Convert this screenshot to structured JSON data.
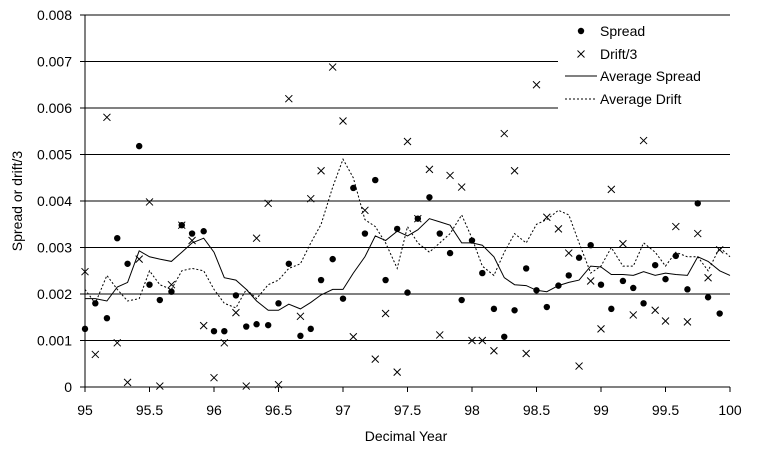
{
  "chart_data": {
    "type": "scatter",
    "xlabel": "Decimal Year",
    "ylabel": "Spread or drift/3",
    "xlim": [
      95,
      100
    ],
    "ylim": [
      0,
      0.008
    ],
    "x_ticks": [
      95,
      95.5,
      96,
      96.5,
      97,
      97.5,
      98,
      98.5,
      99,
      99.5,
      100
    ],
    "x_tick_labels": [
      "95",
      "95.5",
      "96",
      "96.5",
      "97",
      "97.5",
      "98",
      "98.5",
      "99",
      "99.5",
      "100"
    ],
    "y_ticks": [
      0,
      0.001,
      0.002,
      0.003,
      0.004,
      0.005,
      0.006,
      0.007,
      0.008
    ],
    "y_tick_labels": [
      "0",
      "0.001",
      "0.002",
      "0.003",
      "0.004",
      "0.005",
      "0.006",
      "0.007",
      "0.008"
    ],
    "grid": "horizontal",
    "legend_position": "top-right",
    "series": [
      {
        "name": "Spread",
        "marker": "dot",
        "points": [
          [
            95.0,
            0.00125
          ],
          [
            95.08,
            0.0018
          ],
          [
            95.17,
            0.00148
          ],
          [
            95.25,
            0.0032
          ],
          [
            95.33,
            0.00265
          ],
          [
            95.42,
            0.00518
          ],
          [
            95.5,
            0.0022
          ],
          [
            95.58,
            0.00187
          ],
          [
            95.67,
            0.00205
          ],
          [
            95.75,
            0.00348
          ],
          [
            95.83,
            0.0033
          ],
          [
            95.92,
            0.00335
          ],
          [
            96.0,
            0.0012
          ],
          [
            96.08,
            0.0012
          ],
          [
            96.17,
            0.00197
          ],
          [
            96.25,
            0.0013
          ],
          [
            96.33,
            0.00135
          ],
          [
            96.42,
            0.00133
          ],
          [
            96.5,
            0.0018
          ],
          [
            96.58,
            0.00265
          ],
          [
            96.67,
            0.0011
          ],
          [
            96.75,
            0.00125
          ],
          [
            96.83,
            0.0023
          ],
          [
            96.92,
            0.00275
          ],
          [
            97.0,
            0.0019
          ],
          [
            97.08,
            0.00428
          ],
          [
            97.17,
            0.0033
          ],
          [
            97.25,
            0.00445
          ],
          [
            97.33,
            0.0023
          ],
          [
            97.42,
            0.0034
          ],
          [
            97.5,
            0.00203
          ],
          [
            97.58,
            0.00362
          ],
          [
            97.67,
            0.00408
          ],
          [
            97.75,
            0.0033
          ],
          [
            97.83,
            0.00288
          ],
          [
            97.92,
            0.00187
          ],
          [
            98.0,
            0.00315
          ],
          [
            98.08,
            0.00245
          ],
          [
            98.17,
            0.00168
          ],
          [
            98.25,
            0.00108
          ],
          [
            98.33,
            0.00165
          ],
          [
            98.42,
            0.00255
          ],
          [
            98.5,
            0.00208
          ],
          [
            98.58,
            0.00172
          ],
          [
            98.67,
            0.00218
          ],
          [
            98.75,
            0.0024
          ],
          [
            98.83,
            0.00278
          ],
          [
            98.92,
            0.00305
          ],
          [
            99.0,
            0.0022
          ],
          [
            99.08,
            0.00168
          ],
          [
            99.17,
            0.00228
          ],
          [
            99.25,
            0.00213
          ],
          [
            99.33,
            0.0018
          ],
          [
            99.42,
            0.00262
          ],
          [
            99.5,
            0.00232
          ],
          [
            99.58,
            0.00282
          ],
          [
            99.67,
            0.0021
          ],
          [
            99.75,
            0.00395
          ],
          [
            99.83,
            0.00193
          ],
          [
            99.92,
            0.00158
          ]
        ]
      },
      {
        "name": "Drift/3",
        "marker": "x",
        "points": [
          [
            95.0,
            0.00248
          ],
          [
            95.08,
            0.0007
          ],
          [
            95.17,
            0.0058
          ],
          [
            95.25,
            0.00095
          ],
          [
            95.33,
            0.0001
          ],
          [
            95.42,
            0.00275
          ],
          [
            95.5,
            0.00398
          ],
          [
            95.58,
            2e-05
          ],
          [
            95.67,
            0.0022
          ],
          [
            95.75,
            0.00348
          ],
          [
            95.83,
            0.00315
          ],
          [
            95.92,
            0.00132
          ],
          [
            96.0,
            0.0002
          ],
          [
            96.08,
            0.00095
          ],
          [
            96.17,
            0.0016
          ],
          [
            96.25,
            2e-05
          ],
          [
            96.33,
            0.0032
          ],
          [
            96.42,
            0.00395
          ],
          [
            96.5,
            5e-05
          ],
          [
            96.58,
            0.0062
          ],
          [
            96.67,
            0.00152
          ],
          [
            96.75,
            0.00405
          ],
          [
            96.83,
            0.00465
          ],
          [
            96.92,
            0.00688
          ],
          [
            97.0,
            0.00572
          ],
          [
            97.08,
            0.00108
          ],
          [
            97.17,
            0.0038
          ],
          [
            97.25,
            0.0006
          ],
          [
            97.33,
            0.00158
          ],
          [
            97.42,
            0.00032
          ],
          [
            97.5,
            0.00528
          ],
          [
            97.58,
            0.00362
          ],
          [
            97.67,
            0.00468
          ],
          [
            97.75,
            0.00112
          ],
          [
            97.83,
            0.00455
          ],
          [
            97.92,
            0.0043
          ],
          [
            98.0,
            0.001
          ],
          [
            98.08,
            0.001
          ],
          [
            98.17,
            0.00078
          ],
          [
            98.25,
            0.00545
          ],
          [
            98.33,
            0.00465
          ],
          [
            98.42,
            0.00072
          ],
          [
            98.5,
            0.0065
          ],
          [
            98.58,
            0.00365
          ],
          [
            98.67,
            0.0034
          ],
          [
            98.75,
            0.00288
          ],
          [
            98.83,
            0.00045
          ],
          [
            98.92,
            0.00228
          ],
          [
            99.0,
            0.00125
          ],
          [
            99.08,
            0.00425
          ],
          [
            99.17,
            0.00308
          ],
          [
            99.25,
            0.00155
          ],
          [
            99.33,
            0.0053
          ],
          [
            99.42,
            0.00165
          ],
          [
            99.5,
            0.00142
          ],
          [
            99.58,
            0.00345
          ],
          [
            99.67,
            0.0014
          ],
          [
            99.75,
            0.0033
          ],
          [
            99.83,
            0.00235
          ],
          [
            99.92,
            0.00295
          ]
        ]
      },
      {
        "name": "Average Spread",
        "line_style": "solid",
        "points": [
          [
            95.0,
            0.0019
          ],
          [
            95.08,
            0.0019
          ],
          [
            95.17,
            0.00185
          ],
          [
            95.25,
            0.00215
          ],
          [
            95.33,
            0.00225
          ],
          [
            95.42,
            0.00293
          ],
          [
            95.5,
            0.0028
          ],
          [
            95.58,
            0.00275
          ],
          [
            95.67,
            0.0027
          ],
          [
            95.75,
            0.0029
          ],
          [
            95.83,
            0.0031
          ],
          [
            95.92,
            0.0032
          ],
          [
            96.0,
            0.0029
          ],
          [
            96.08,
            0.00235
          ],
          [
            96.17,
            0.0023
          ],
          [
            96.25,
            0.0021
          ],
          [
            96.33,
            0.00185
          ],
          [
            96.42,
            0.00165
          ],
          [
            96.5,
            0.00165
          ],
          [
            96.58,
            0.00178
          ],
          [
            96.67,
            0.00168
          ],
          [
            96.75,
            0.00182
          ],
          [
            96.83,
            0.00198
          ],
          [
            96.92,
            0.0021
          ],
          [
            97.0,
            0.0021
          ],
          [
            97.08,
            0.00245
          ],
          [
            97.17,
            0.0028
          ],
          [
            97.25,
            0.00325
          ],
          [
            97.33,
            0.00315
          ],
          [
            97.42,
            0.00335
          ],
          [
            97.5,
            0.00325
          ],
          [
            97.58,
            0.00338
          ],
          [
            97.67,
            0.00362
          ],
          [
            97.75,
            0.00355
          ],
          [
            97.83,
            0.00348
          ],
          [
            97.92,
            0.0031
          ],
          [
            98.0,
            0.0031
          ],
          [
            98.08,
            0.00305
          ],
          [
            98.17,
            0.0028
          ],
          [
            98.25,
            0.00235
          ],
          [
            98.33,
            0.0022
          ],
          [
            98.42,
            0.00218
          ],
          [
            98.5,
            0.00208
          ],
          [
            98.58,
            0.00205
          ],
          [
            98.67,
            0.00218
          ],
          [
            98.75,
            0.00225
          ],
          [
            98.83,
            0.0023
          ],
          [
            98.92,
            0.0026
          ],
          [
            99.0,
            0.00258
          ],
          [
            99.08,
            0.00242
          ],
          [
            99.17,
            0.00242
          ],
          [
            99.25,
            0.0024
          ],
          [
            99.33,
            0.00248
          ],
          [
            99.42,
            0.0024
          ],
          [
            99.5,
            0.00245
          ],
          [
            99.58,
            0.00242
          ],
          [
            99.67,
            0.0024
          ],
          [
            99.75,
            0.0028
          ],
          [
            99.83,
            0.0027
          ],
          [
            99.92,
            0.0025
          ],
          [
            100.0,
            0.0024
          ]
        ]
      },
      {
        "name": "Average Drift",
        "line_style": "dotted",
        "points": [
          [
            95.0,
            0.0021
          ],
          [
            95.08,
            0.0018
          ],
          [
            95.17,
            0.0024
          ],
          [
            95.25,
            0.0021
          ],
          [
            95.33,
            0.00185
          ],
          [
            95.42,
            0.0019
          ],
          [
            95.5,
            0.0025
          ],
          [
            95.58,
            0.0022
          ],
          [
            95.67,
            0.0021
          ],
          [
            95.75,
            0.0025
          ],
          [
            95.83,
            0.00255
          ],
          [
            95.92,
            0.0025
          ],
          [
            96.0,
            0.0021
          ],
          [
            96.08,
            0.0018
          ],
          [
            96.17,
            0.0017
          ],
          [
            96.25,
            0.0021
          ],
          [
            96.33,
            0.0019
          ],
          [
            96.42,
            0.0022
          ],
          [
            96.5,
            0.0023
          ],
          [
            96.58,
            0.00255
          ],
          [
            96.67,
            0.00265
          ],
          [
            96.75,
            0.0031
          ],
          [
            96.83,
            0.0035
          ],
          [
            96.92,
            0.0043
          ],
          [
            97.0,
            0.0049
          ],
          [
            97.08,
            0.0045
          ],
          [
            97.17,
            0.0036
          ],
          [
            97.25,
            0.00345
          ],
          [
            97.33,
            0.0031
          ],
          [
            97.42,
            0.00255
          ],
          [
            97.5,
            0.00345
          ],
          [
            97.58,
            0.0031
          ],
          [
            97.67,
            0.0029
          ],
          [
            97.75,
            0.0031
          ],
          [
            97.83,
            0.0033
          ],
          [
            97.92,
            0.0037
          ],
          [
            98.0,
            0.0032
          ],
          [
            98.08,
            0.0026
          ],
          [
            98.17,
            0.0024
          ],
          [
            98.25,
            0.0029
          ],
          [
            98.33,
            0.0033
          ],
          [
            98.42,
            0.0031
          ],
          [
            98.5,
            0.0035
          ],
          [
            98.58,
            0.0036
          ],
          [
            98.67,
            0.0038
          ],
          [
            98.75,
            0.0037
          ],
          [
            98.83,
            0.0031
          ],
          [
            98.92,
            0.00245
          ],
          [
            99.0,
            0.0026
          ],
          [
            99.08,
            0.003
          ],
          [
            99.17,
            0.0026
          ],
          [
            99.25,
            0.0026
          ],
          [
            99.33,
            0.0031
          ],
          [
            99.42,
            0.0029
          ],
          [
            99.5,
            0.0026
          ],
          [
            99.58,
            0.0029
          ],
          [
            99.67,
            0.0028
          ],
          [
            99.75,
            0.0028
          ],
          [
            99.83,
            0.0025
          ],
          [
            99.92,
            0.003
          ],
          [
            100.0,
            0.0028
          ]
        ]
      }
    ]
  }
}
